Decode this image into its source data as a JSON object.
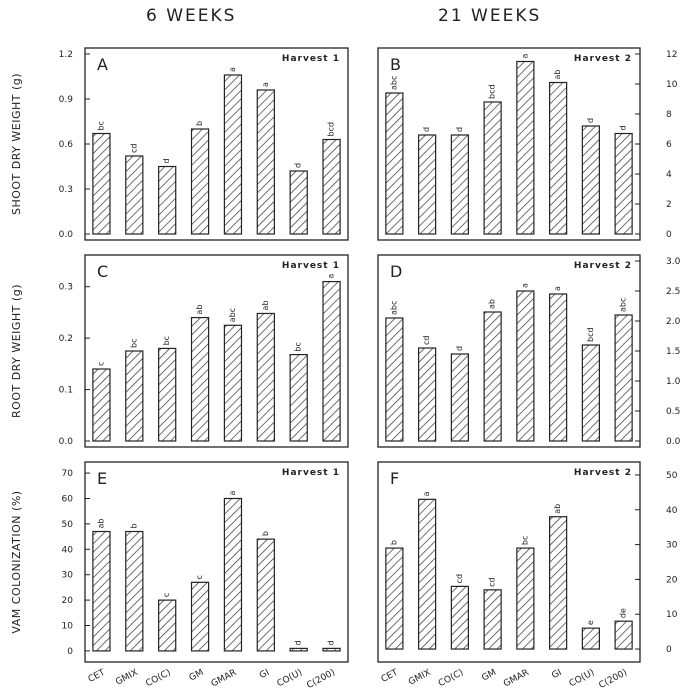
{
  "column_titles": [
    "6 WEEKS",
    "21 WEEKS"
  ],
  "row_ylabels": [
    "SHOOT DRY WEIGHT (g)",
    "ROOT DRY WEIGHT (g)",
    "VAM COLONIZATION (%)"
  ],
  "categories": [
    "CET",
    "GMIX",
    "CO(C)",
    "GM",
    "GMAR",
    "GI",
    "CO(U)",
    "C(200)"
  ],
  "chart_data": [
    {
      "panel": "A",
      "type": "bar",
      "harvest_label": "Harvest 1",
      "categories": [
        "CET",
        "GMIX",
        "CO(C)",
        "GM",
        "GMAR",
        "GI",
        "CO(U)",
        "C(200)"
      ],
      "values": [
        0.67,
        0.52,
        0.45,
        0.7,
        1.06,
        0.96,
        0.42,
        0.63
      ],
      "letters": [
        "bc",
        "cd",
        "d",
        "b",
        "a",
        "a",
        "d",
        "bcd"
      ],
      "ylim": [
        0,
        1.2
      ],
      "ticks": [
        0.0,
        0.3,
        0.6,
        0.9,
        1.2
      ],
      "tick_labels": [
        "0.0",
        "0.3",
        "0.6",
        "0.9",
        "1.2"
      ],
      "ylabel": "SHOOT DRY WEIGHT (g)"
    },
    {
      "panel": "B",
      "type": "bar",
      "harvest_label": "Harvest 2",
      "categories": [
        "CET",
        "GMIX",
        "CO(C)",
        "GM",
        "GMAR",
        "GI",
        "CO(U)",
        "C(200)"
      ],
      "values": [
        9.4,
        6.6,
        6.6,
        8.8,
        11.5,
        10.1,
        7.2,
        6.7
      ],
      "letters": [
        "abc",
        "d",
        "d",
        "bcd",
        "a",
        "ab",
        "d",
        "d"
      ],
      "ylim": [
        0,
        12
      ],
      "ticks": [
        0,
        2,
        4,
        6,
        8,
        10,
        12
      ],
      "tick_labels": [
        "0",
        "2",
        "4",
        "6",
        "8",
        "10",
        "12"
      ]
    },
    {
      "panel": "C",
      "type": "bar",
      "harvest_label": "Harvest 1",
      "categories": [
        "CET",
        "GMIX",
        "CO(C)",
        "GM",
        "GMAR",
        "GI",
        "CO(U)",
        "C(200)"
      ],
      "values": [
        0.14,
        0.175,
        0.18,
        0.24,
        0.225,
        0.248,
        0.168,
        0.31
      ],
      "letters": [
        "c",
        "bc",
        "bc",
        "ab",
        "abc",
        "ab",
        "bc",
        "a"
      ],
      "ylim": [
        0,
        0.35
      ],
      "ticks": [
        0.0,
        0.1,
        0.2,
        0.3
      ],
      "tick_labels": [
        "0.0",
        "0.1",
        "0.2",
        "0.3"
      ],
      "ylabel": "ROOT DRY WEIGHT (g)"
    },
    {
      "panel": "D",
      "type": "bar",
      "harvest_label": "Harvest 2",
      "categories": [
        "CET",
        "GMIX",
        "CO(C)",
        "GM",
        "GMAR",
        "GI",
        "CO(U)",
        "C(200)"
      ],
      "values": [
        2.05,
        1.55,
        1.45,
        2.15,
        2.5,
        2.45,
        1.6,
        2.1
      ],
      "letters": [
        "abc",
        "cd",
        "d",
        "ab",
        "a",
        "a",
        "bcd",
        "abc"
      ],
      "ylim": [
        0,
        3.0
      ],
      "ticks": [
        0.0,
        0.5,
        1.0,
        1.5,
        2.0,
        2.5,
        3.0
      ],
      "tick_labels": [
        "0.0",
        "0.5",
        "1.0",
        "1.5",
        "2.0",
        "2.5",
        "3.0"
      ]
    },
    {
      "panel": "E",
      "type": "bar",
      "harvest_label": "Harvest 1",
      "categories": [
        "CET",
        "GMIX",
        "CO(C)",
        "GM",
        "GMAR",
        "GI",
        "CO(U)",
        "C(200)"
      ],
      "values": [
        47,
        47,
        20,
        27,
        60,
        44,
        1,
        1
      ],
      "letters": [
        "ab",
        "b",
        "c",
        "c",
        "a",
        "b",
        "d",
        "d"
      ],
      "ylim": [
        -2,
        72
      ],
      "ticks": [
        0,
        10,
        20,
        30,
        40,
        50,
        60,
        70
      ],
      "tick_labels": [
        "0",
        "10",
        "20",
        "30",
        "40",
        "50",
        "60",
        "70"
      ],
      "ylabel": "VAM COLONIZATION (%)"
    },
    {
      "panel": "F",
      "type": "bar",
      "harvest_label": "Harvest 2",
      "categories": [
        "CET",
        "GMIX",
        "CO(C)",
        "GM",
        "GMAR",
        "GI",
        "CO(U)",
        "C(200)"
      ],
      "values": [
        29,
        43,
        18,
        17,
        29,
        38,
        6,
        8
      ],
      "letters": [
        "b",
        "a",
        "cd",
        "cd",
        "bc",
        "ab",
        "e",
        "de"
      ],
      "ylim": [
        -2,
        52
      ],
      "ticks": [
        0,
        10,
        20,
        30,
        40,
        50
      ],
      "tick_labels": [
        "0",
        "10",
        "20",
        "30",
        "40",
        "50"
      ]
    }
  ]
}
